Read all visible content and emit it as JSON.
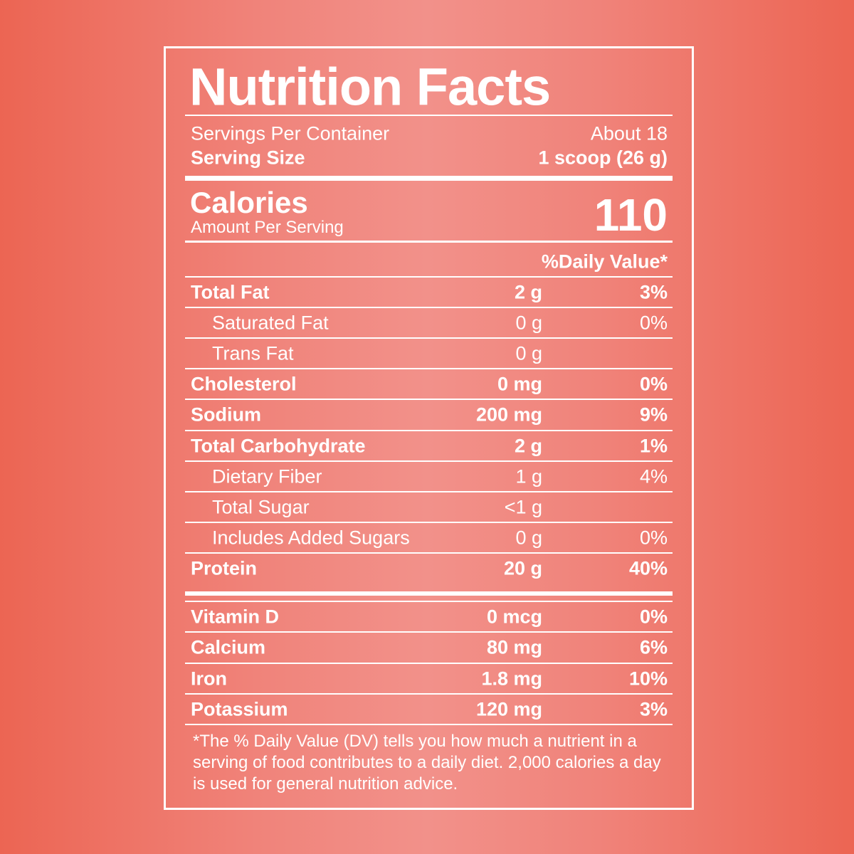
{
  "label": {
    "title": "Nutrition Facts",
    "servings_label": "Servings Per Container",
    "servings_value": "About 18",
    "serving_size_label": "Serving Size",
    "serving_size_value": "1 scoop (26 g)",
    "calories_label": "Calories",
    "calories_sub": "Amount Per Serving",
    "calories_value": "110",
    "dv_header": "%Daily Value*",
    "rows": [
      {
        "name": "Total Fat",
        "amount": "2 g",
        "dv": "3%"
      },
      {
        "name": "Saturated Fat",
        "amount": "0 g",
        "dv": "0%"
      },
      {
        "name": "Trans Fat",
        "amount": "0 g"
      },
      {
        "name": "Cholesterol",
        "amount": "0 mg",
        "dv": "0%"
      },
      {
        "name": "Sodium",
        "amount": "200 mg",
        "dv": "9%"
      },
      {
        "name": "Total Carbohydrate",
        "amount": "2 g",
        "dv": "1%"
      },
      {
        "name": "Dietary Fiber",
        "amount": "1 g",
        "dv": "4%"
      },
      {
        "name": "Total Sugar",
        "amount": "<1 g"
      },
      {
        "name": "Includes Added Sugars",
        "amount": "0 g",
        "dv": "0%"
      },
      {
        "name": "Protein",
        "amount": "20 g",
        "dv": "40%"
      }
    ],
    "vitamins": [
      {
        "name": "Vitamin D",
        "amount": "0 mcg",
        "dv": "0%"
      },
      {
        "name": "Calcium",
        "amount": "80 mg",
        "dv": "6%"
      },
      {
        "name": "Iron",
        "amount": "1.8 mg",
        "dv": "10%"
      },
      {
        "name": "Potassium",
        "amount": "120 mg",
        "dv": "3%"
      }
    ],
    "footnote": "*The % Daily Value (DV) tells you how much a nutrient in a serving of food contributes to a daily diet. 2,000 calories a day is used for general nutrition advice."
  }
}
